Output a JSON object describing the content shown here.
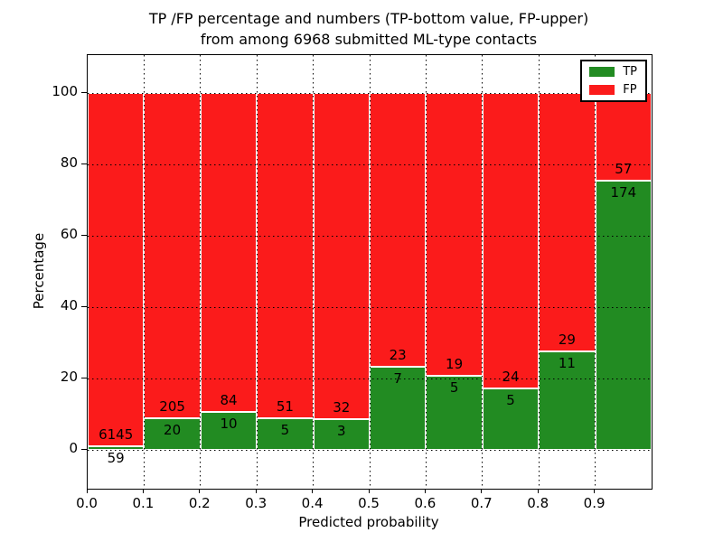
{
  "figure": {
    "title_line1": "TP /FP percentage and numbers (TP-bottom value, FP-upper)",
    "title_line2": "from among 6968 submitted ML-type contacts",
    "xlabel": "Predicted probability",
    "ylabel": "Percentage"
  },
  "legend": {
    "items": [
      {
        "label": "TP",
        "color": "#228b22"
      },
      {
        "label": "FP",
        "color": "#fb1b1b"
      }
    ]
  },
  "chart_data": {
    "type": "bar",
    "subtype": "stacked-100-percent",
    "title": "TP /FP percentage and numbers (TP-bottom value, FP-upper) from among 6968 submitted ML-type contacts",
    "xlabel": "Predicted probability",
    "ylabel": "Percentage",
    "total_contacts": 6968,
    "categories": [
      "0.0-0.1",
      "0.1-0.2",
      "0.2-0.3",
      "0.3-0.4",
      "0.4-0.5",
      "0.5-0.6",
      "0.6-0.7",
      "0.7-0.8",
      "0.8-0.9",
      "0.9-1.0"
    ],
    "series": [
      {
        "name": "TP",
        "color": "#228b22",
        "counts": [
          59,
          20,
          10,
          5,
          3,
          7,
          5,
          5,
          11,
          174
        ]
      },
      {
        "name": "FP",
        "color": "#fb1b1b",
        "counts": [
          6145,
          205,
          84,
          51,
          32,
          23,
          19,
          24,
          29,
          57
        ]
      }
    ],
    "tp_percent": [
      0.95,
      8.89,
      10.64,
      8.93,
      8.57,
      23.33,
      20.83,
      17.24,
      27.5,
      75.32
    ],
    "x_ticks": [
      "0.0",
      "0.1",
      "0.2",
      "0.3",
      "0.4",
      "0.5",
      "0.6",
      "0.7",
      "0.8",
      "0.9"
    ],
    "y_ticks": [
      0,
      20,
      40,
      60,
      80,
      100
    ],
    "xlim": [
      0.0,
      1.0
    ],
    "ylim": [
      -11,
      110.6
    ],
    "grid": "dotted",
    "legend_position": "upper right"
  }
}
